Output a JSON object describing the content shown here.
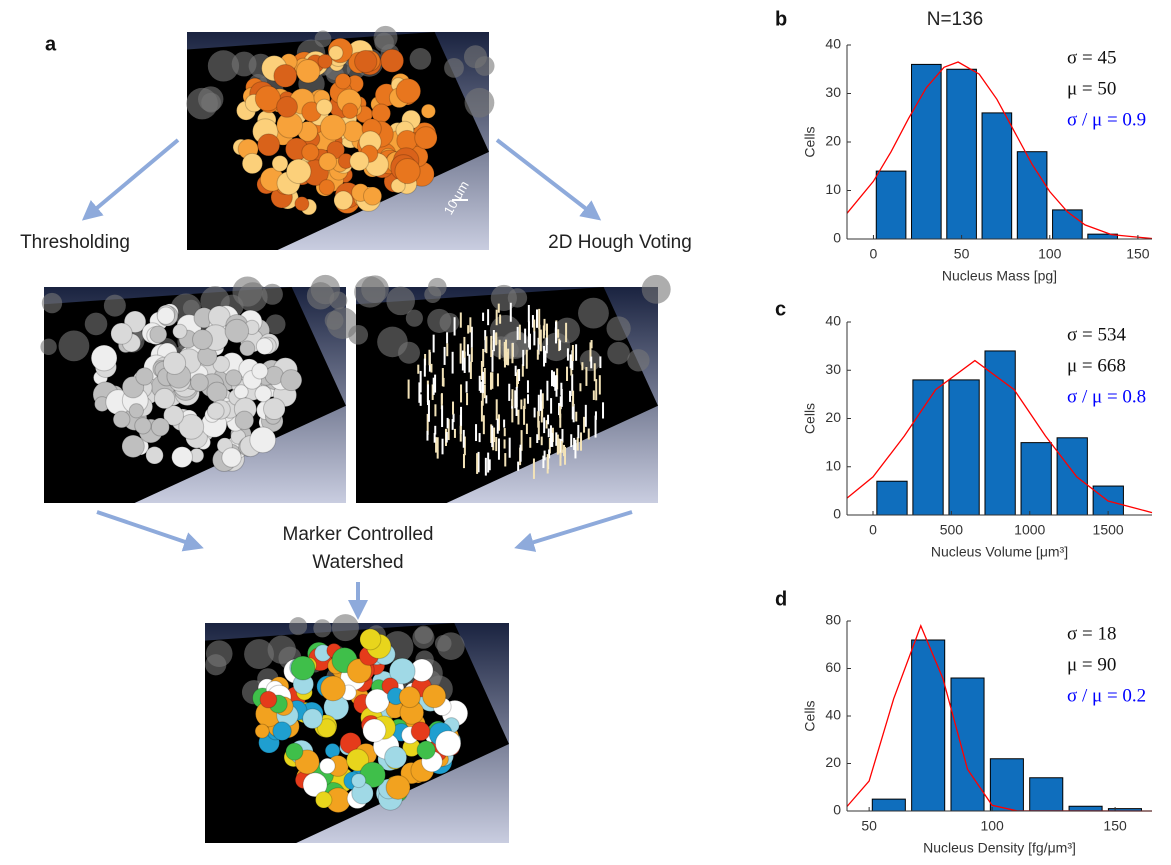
{
  "figure": {
    "panel_a": {
      "label": "a",
      "scale_bar": "10 μm",
      "left_step": "Thresholding",
      "right_step": "2D Hough Voting",
      "merge_step": [
        "Marker Controlled",
        "Watershed"
      ]
    }
  },
  "chart_data": [
    {
      "type": "histogram",
      "panel_label": "b",
      "title": "N=136",
      "x_label": "Nucleus Mass [pg]",
      "y_label": "Cells",
      "bins": [
        0,
        20,
        40,
        60,
        80,
        100,
        120,
        140
      ],
      "values": [
        14,
        36,
        35,
        26,
        18,
        6,
        1
      ],
      "color": "#0f6ebd",
      "xlim": [
        -15,
        158
      ],
      "ylim": [
        0,
        40
      ],
      "xticks": [
        0,
        50,
        100,
        150
      ],
      "yticks": [
        0,
        10,
        20,
        30,
        40
      ],
      "curve": {
        "color": "#ff0000",
        "x": [
          -15,
          0,
          10,
          20,
          30,
          40,
          48,
          60,
          70,
          80,
          90,
          100,
          110,
          120,
          135,
          158
        ],
        "y": [
          5.3,
          11.9,
          18.0,
          24.9,
          31.2,
          35.4,
          36.5,
          34.0,
          28.8,
          22.1,
          15.4,
          9.8,
          5.6,
          2.9,
          0.9,
          0.1
        ]
      },
      "annotations": [
        "σ = 45",
        "μ = 50",
        "σ / μ = 0.9"
      ],
      "annotation_colors": [
        "#111111",
        "#111111",
        "#0000ff"
      ]
    },
    {
      "type": "histogram",
      "panel_label": "c",
      "x_label": "Nucleus Volume [μm³]",
      "y_label": "Cells",
      "bins": [
        6,
        236,
        466,
        696,
        926,
        1156,
        1386,
        1616
      ],
      "values": [
        7,
        28,
        28,
        34,
        15,
        16,
        6
      ],
      "color": "#0f6ebd",
      "xlim": [
        -166,
        1780
      ],
      "ylim": [
        0,
        40
      ],
      "xticks": [
        0,
        500,
        1000,
        1500
      ],
      "yticks": [
        0,
        10,
        20,
        30,
        40
      ],
      "curve": {
        "color": "#ff0000",
        "x": [
          -166,
          0,
          200,
          400,
          650,
          900,
          1100,
          1300,
          1500,
          1780
        ],
        "y": [
          3.5,
          7.9,
          16.4,
          26.0,
          32,
          26.0,
          16.4,
          7.9,
          2.9,
          0.5
        ]
      },
      "annotations": [
        "σ = 534",
        "μ = 668",
        "σ / μ = 0.8"
      ],
      "annotation_colors": [
        "#111111",
        "#111111",
        "#0000ff"
      ]
    },
    {
      "type": "histogram",
      "panel_label": "d",
      "x_label": "Nucleus Density [fg/μm³]",
      "y_label": "Cells",
      "bins": [
        50,
        66,
        82,
        98,
        114,
        130,
        146,
        162
      ],
      "values": [
        5,
        72,
        56,
        22,
        14,
        2,
        1
      ],
      "color": "#0f6ebd",
      "xlim": [
        41,
        165
      ],
      "ylim": [
        0,
        80
      ],
      "xticks": [
        50,
        100,
        150
      ],
      "yticks": [
        0,
        20,
        40,
        60,
        80
      ],
      "curve": {
        "color": "#ff0000",
        "x": [
          41,
          50,
          60,
          71,
          80,
          90,
          100,
          110,
          165
        ],
        "y": [
          1.9,
          12.6,
          47.3,
          78,
          55.8,
          17.6,
          2.4,
          0.1,
          0
        ]
      },
      "annotations": [
        "σ = 18",
        "μ = 90",
        "σ / μ = 0.2"
      ],
      "annotation_colors": [
        "#111111",
        "#111111",
        "#0000ff"
      ]
    }
  ]
}
